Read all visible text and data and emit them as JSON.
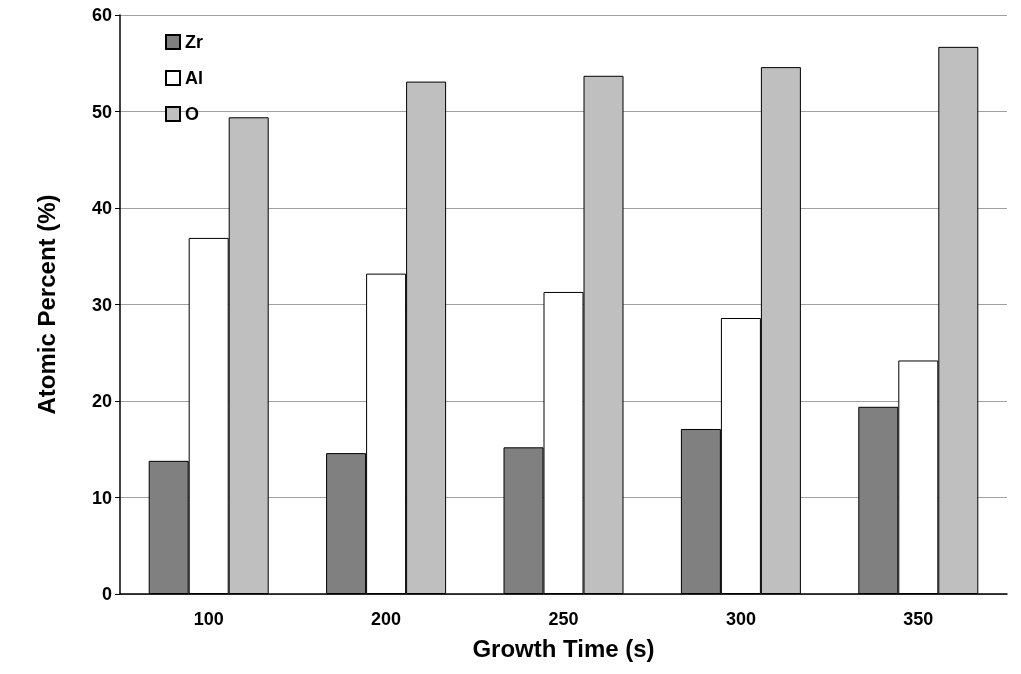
{
  "chart_data": {
    "type": "bar",
    "xlabel": "Growth Time (s)",
    "ylabel": "Atomic Percent (%)",
    "categories": [
      "100",
      "200",
      "250",
      "300",
      "350"
    ],
    "series": [
      {
        "name": "Zr",
        "color": "#808080",
        "values": [
          13.8,
          14.6,
          15.2,
          17.1,
          19.4
        ]
      },
      {
        "name": "Al",
        "color": "#ffffff",
        "values": [
          36.9,
          33.2,
          31.3,
          28.6,
          24.2
        ]
      },
      {
        "name": "O",
        "color": "#bfbfbf",
        "values": [
          49.4,
          53.1,
          53.7,
          54.6,
          56.7
        ]
      }
    ],
    "ylim": [
      0,
      60
    ],
    "yticks": [
      0,
      10,
      20,
      30,
      40,
      50,
      60
    ],
    "grid": "y",
    "legend": "top left"
  }
}
